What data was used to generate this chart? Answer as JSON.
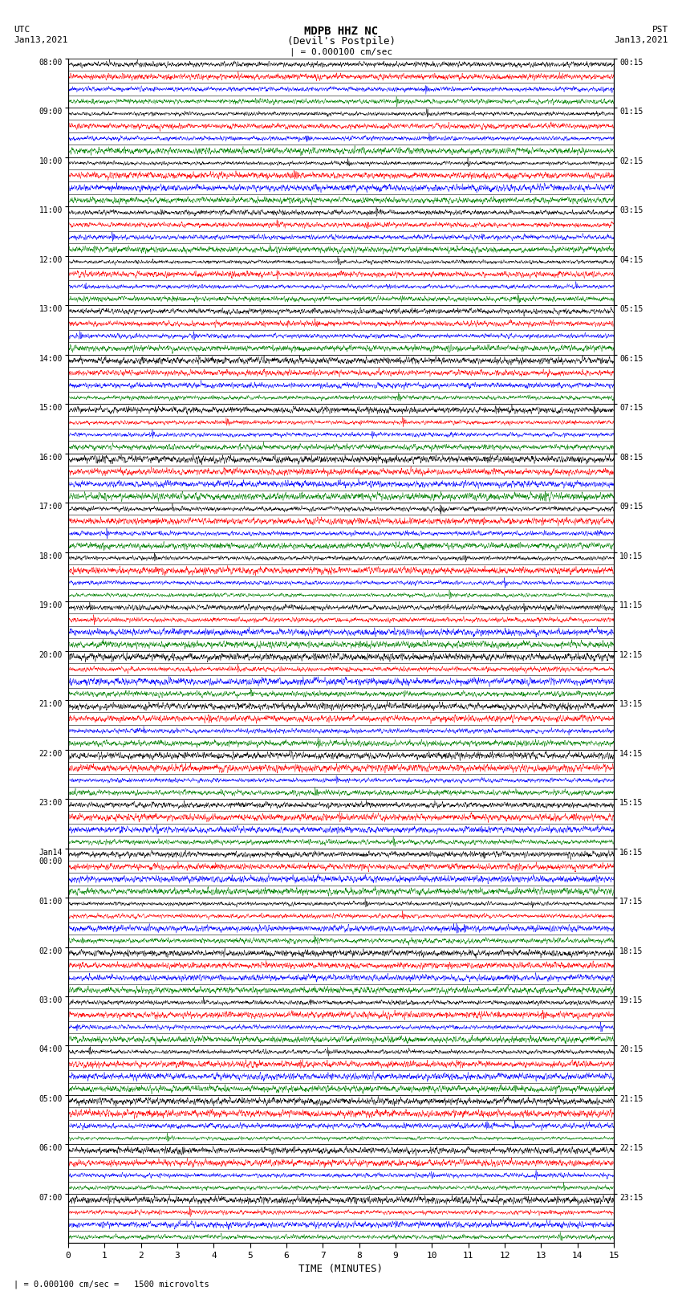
{
  "title_line1": "MDPB HHZ NC",
  "title_line2": "(Devil's Postpile)",
  "scale_label": "| = 0.000100 cm/sec",
  "left_header_line1": "UTC",
  "left_header_line2": "Jan13,2021",
  "right_header_line1": "PST",
  "right_header_line2": "Jan13,2021",
  "bottom_label": "TIME (MINUTES)",
  "scale_note": "| = 0.000100 cm/sec =   1500 microvolts",
  "left_times": [
    "08:00",
    "09:00",
    "10:00",
    "11:00",
    "12:00",
    "13:00",
    "14:00",
    "15:00",
    "16:00",
    "17:00",
    "18:00",
    "19:00",
    "20:00",
    "21:00",
    "22:00",
    "23:00",
    "Jan14\n00:00",
    "01:00",
    "02:00",
    "03:00",
    "04:00",
    "05:00",
    "06:00",
    "07:00"
  ],
  "right_times": [
    "00:15",
    "01:15",
    "02:15",
    "03:15",
    "04:15",
    "05:15",
    "06:15",
    "07:15",
    "08:15",
    "09:15",
    "10:15",
    "11:15",
    "12:15",
    "13:15",
    "14:15",
    "15:15",
    "16:15",
    "17:15",
    "18:15",
    "19:15",
    "20:15",
    "21:15",
    "22:15",
    "23:15"
  ],
  "n_rows": 24,
  "traces_per_row": 4,
  "minutes_per_row": 15,
  "trace_color_order": [
    "black",
    "red",
    "blue",
    "green"
  ],
  "fig_width": 8.5,
  "fig_height": 16.13,
  "bg_color": "white",
  "n_points": 4000,
  "trace_amplitude": 0.42,
  "linewidth": 0.3
}
